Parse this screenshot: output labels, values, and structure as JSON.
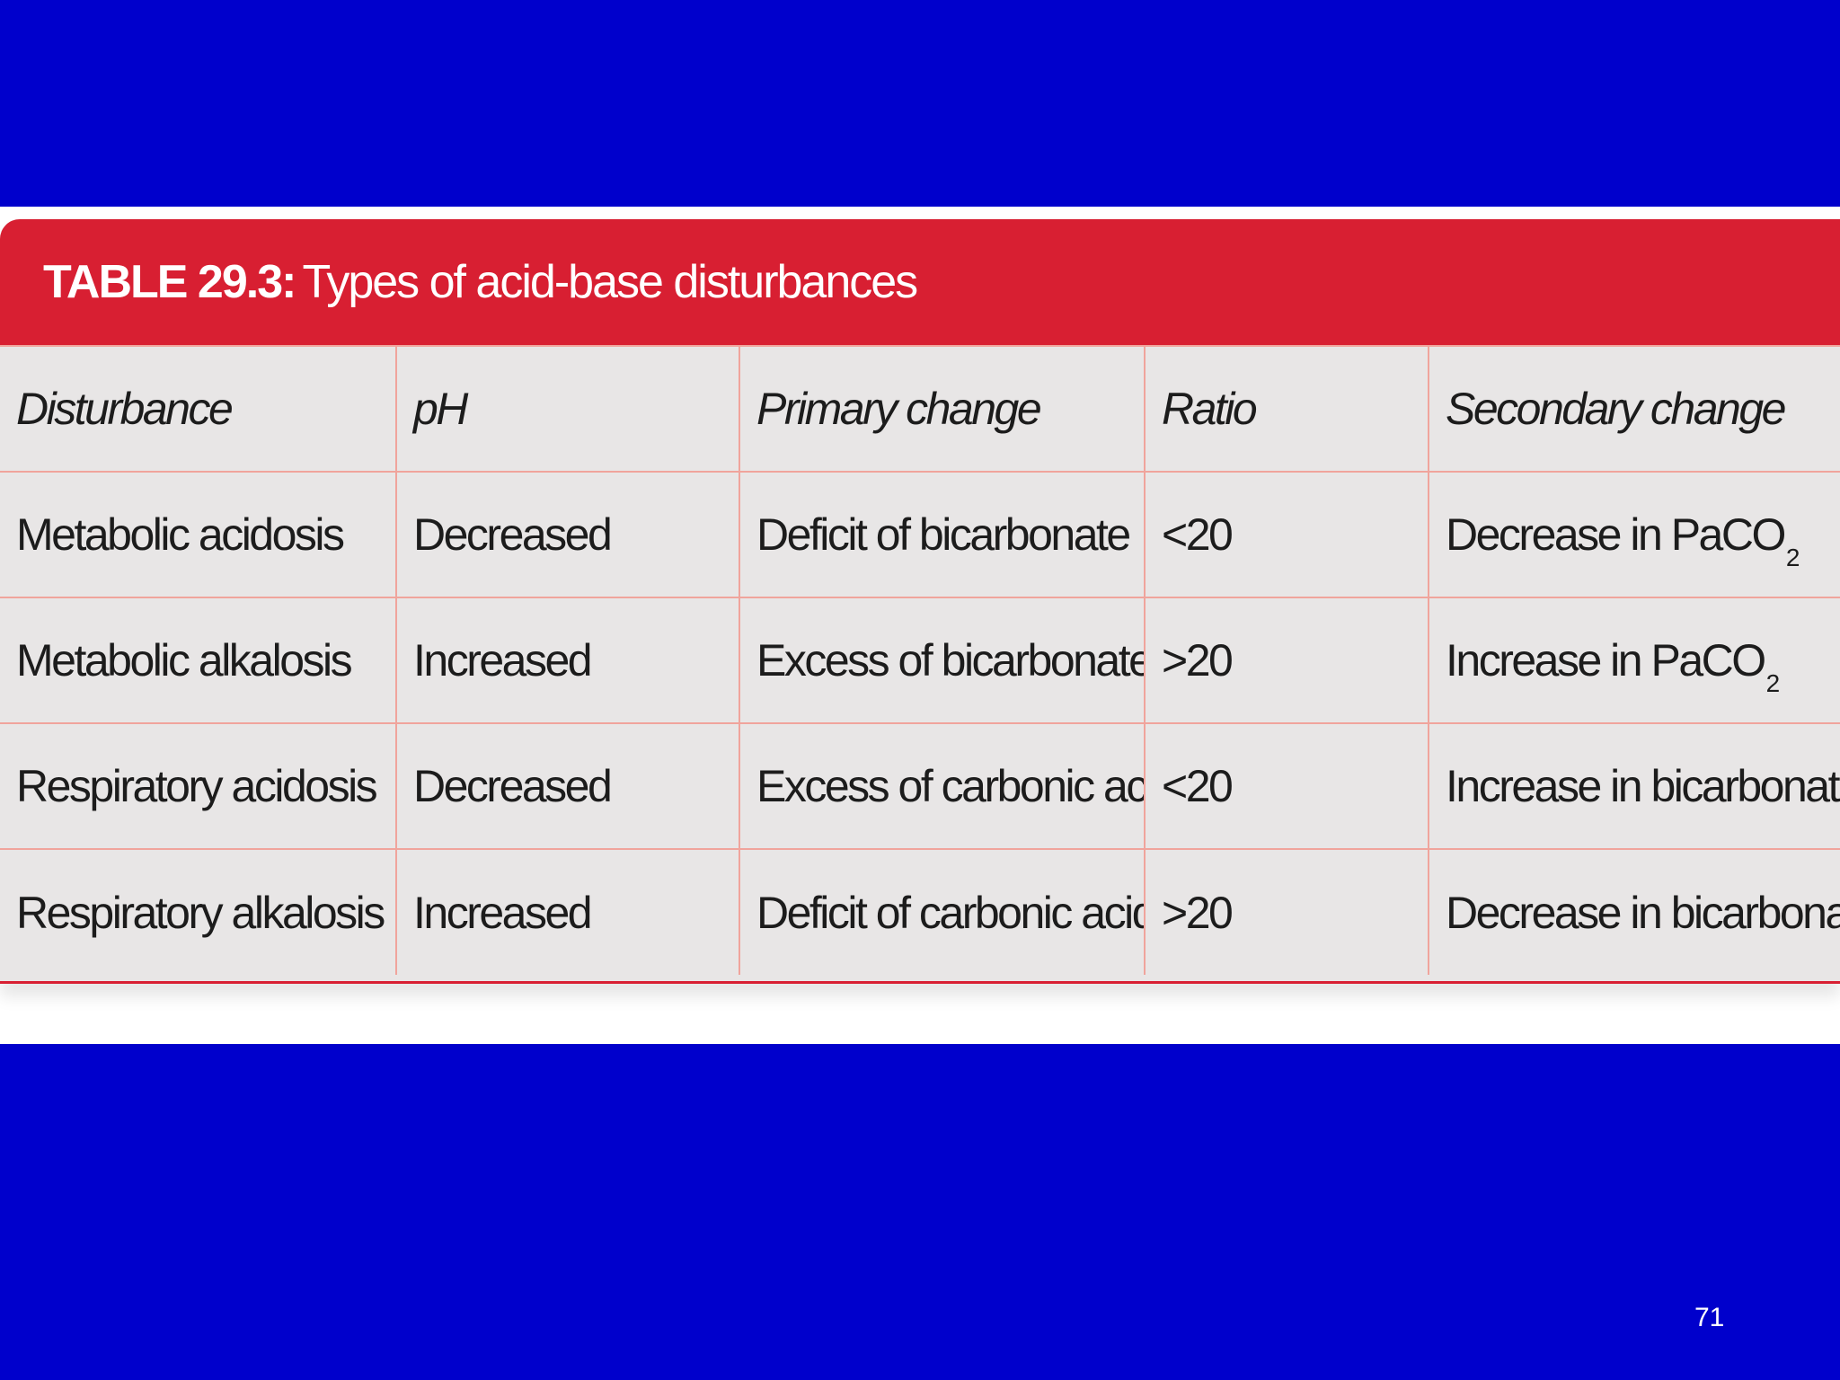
{
  "table": {
    "caption_label": "TABLE 29.3:",
    "caption_title": "Types  of acid-base disturbances",
    "headers": [
      "Disturbance",
      "pH",
      "Primary change",
      "Ratio",
      "Secondary change"
    ],
    "rows": [
      {
        "disturbance": "Metabolic acidosis",
        "ph": "Decreased",
        "primary_change": "Deficit of bicarbonate",
        "ratio": "<20",
        "secondary_change": "Decrease in PaCO",
        "secondary_change_subscript": "2"
      },
      {
        "disturbance": "Metabolic alkalosis",
        "ph": "Increased",
        "primary_change": "Excess of bicarbonate",
        "ratio": ">20",
        "secondary_change": "Increase in PaCO",
        "secondary_change_subscript": "2"
      },
      {
        "disturbance": "Respiratory acidosis",
        "ph": "Decreased",
        "primary_change": "Excess of carbonic acid",
        "ratio": "<20",
        "secondary_change": "Increase in bicarbonate"
      },
      {
        "disturbance": "Respiratory alkalosis",
        "ph": "Increased",
        "primary_change": "Deficit of carbonic acid",
        "ratio": ">20",
        "secondary_change": "Decrease in bicarbonate"
      }
    ]
  },
  "slide_number": "71",
  "colors": {
    "background": "#0000cc",
    "header_red": "#d81f32",
    "cell_bg": "#e8e6e6",
    "grid_line": "#f0a49c"
  }
}
